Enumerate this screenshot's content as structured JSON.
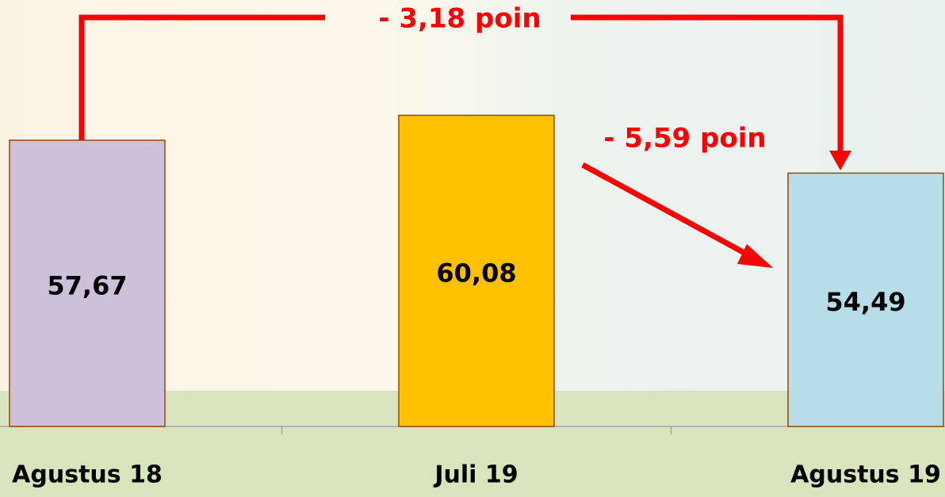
{
  "chart_data": {
    "type": "bar",
    "categories": [
      "Agustus 18",
      "Juli 19",
      "Agustus 19"
    ],
    "values": [
      57.67,
      60.08,
      54.49
    ],
    "value_labels": [
      "57,67",
      "60,08",
      "54,49"
    ],
    "colors": [
      "#ccc0da",
      "#ffc000",
      "#b7dde8"
    ],
    "ylim": [
      30,
      70
    ],
    "annotations": [
      "- 3,18 poin",
      "- 5,59 poin"
    ]
  }
}
